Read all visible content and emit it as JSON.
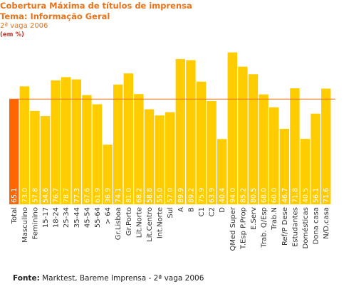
{
  "title": {
    "line1": "Cobertura Máxima de títulos de imprensa",
    "line2": "Tema: Informação Geral",
    "line3": "2ª vaga 2006",
    "unit": "(em %)"
  },
  "source": {
    "label": "Fonte:",
    "text": "Marktest, Bareme Imprensa - 2ª vaga 2006"
  },
  "colors": {
    "bar": "#ffcc00",
    "highlight": "#ff6600",
    "reference_line": "#e8731a",
    "title": "#e8731a"
  },
  "chart_data": {
    "type": "bar",
    "categories": [
      "Total",
      "Masculino",
      "Feminino",
      "15-17",
      "18-24",
      "25-34",
      "35-44",
      "45-54",
      "55-64",
      "> 64",
      "Gr.Lisboa",
      "Gr.Porto",
      "Lit.Norte",
      "Lit.Centro",
      "Int.Norte",
      "Sul",
      "A",
      "B",
      "C1",
      "C2",
      "D",
      "QMed Super",
      "T.Esp P.Prop",
      "E.Serv",
      "Trab. Q/Esp",
      "Trab.N",
      "Ref/P Dese",
      "Estudantes",
      "Domésticas",
      "Dona casa",
      "N/D.casa"
    ],
    "values": [
      65.1,
      73.0,
      57.8,
      54.6,
      76.7,
      78.7,
      77.3,
      67.6,
      61.9,
      36.9,
      74.1,
      81.0,
      68.2,
      58.8,
      55.0,
      57.0,
      89.9,
      89.2,
      75.9,
      63.9,
      40.4,
      94.0,
      85.2,
      80.5,
      68.0,
      60.0,
      46.7,
      71.8,
      40.5,
      56.1,
      71.6
    ],
    "value_labels": [
      "65.1",
      "73.0",
      "57.8",
      "54.6",
      "76.7",
      "78.7",
      "77.3",
      "67.6",
      "61.9",
      "36.9",
      "74.1",
      "81.0",
      "68.2",
      "58.8",
      "55.0",
      "57.0",
      "89.9",
      "89.2",
      "75.9",
      "63.9",
      "40.4",
      "94.0",
      "85.2",
      "80.5",
      "68.0",
      "60.0",
      "46.7",
      "71.8",
      "40.5",
      "56.1",
      "71.6"
    ],
    "highlight_index": 0,
    "reference_value": 65.1,
    "ylim": [
      0,
      100
    ],
    "grid": false
  }
}
